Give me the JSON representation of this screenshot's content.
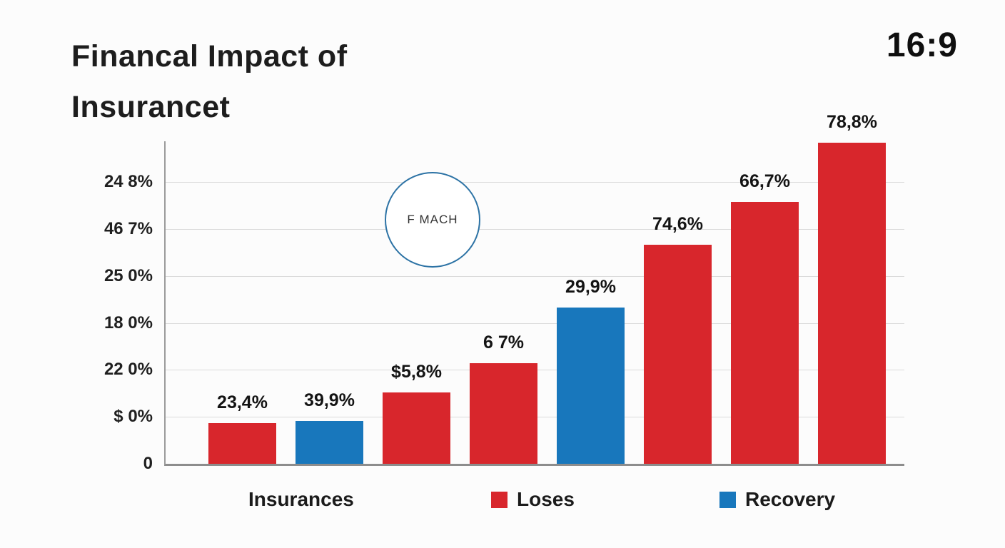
{
  "meta": {
    "aspect_label": "16:9"
  },
  "title": {
    "line1": "Financal Impact of",
    "line2": "Insurancet"
  },
  "watermark": "F MACH",
  "chart_data": {
    "type": "bar",
    "title": "Financal Impact of Insurancet",
    "xlabel": "",
    "ylabel": "",
    "grid": true,
    "legend_position": "bottom",
    "y_axis_tick_labels": [
      "24 8%",
      "46 7%",
      "25 0%",
      "18 0%",
      "22 0%",
      "$ 0%",
      "0"
    ],
    "bars": [
      {
        "data_label": "23,4%",
        "value_pct_of_axis": 12.7,
        "color": "red"
      },
      {
        "data_label": "39,9%",
        "value_pct_of_axis": 13.3,
        "color": "blue"
      },
      {
        "data_label": "$5,8%",
        "value_pct_of_axis": 22.2,
        "color": "red"
      },
      {
        "data_label": "6 7%",
        "value_pct_of_axis": 31.1,
        "color": "red"
      },
      {
        "data_label": "29,9%",
        "value_pct_of_axis": 48.4,
        "color": "blue"
      },
      {
        "data_label": "74,6%",
        "value_pct_of_axis": 68.0,
        "color": "red"
      },
      {
        "data_label": "66,7%",
        "value_pct_of_axis": 81.3,
        "color": "red"
      },
      {
        "data_label": "78,8%",
        "value_pct_of_axis": 99.6,
        "color": "red"
      }
    ],
    "legend": [
      {
        "label": "Insurances",
        "swatch": null
      },
      {
        "label": "Loses",
        "swatch": "red"
      },
      {
        "label": "Recovery",
        "swatch": "blue"
      }
    ],
    "colors": {
      "red": "#d8262c",
      "blue": "#1877bc"
    }
  }
}
